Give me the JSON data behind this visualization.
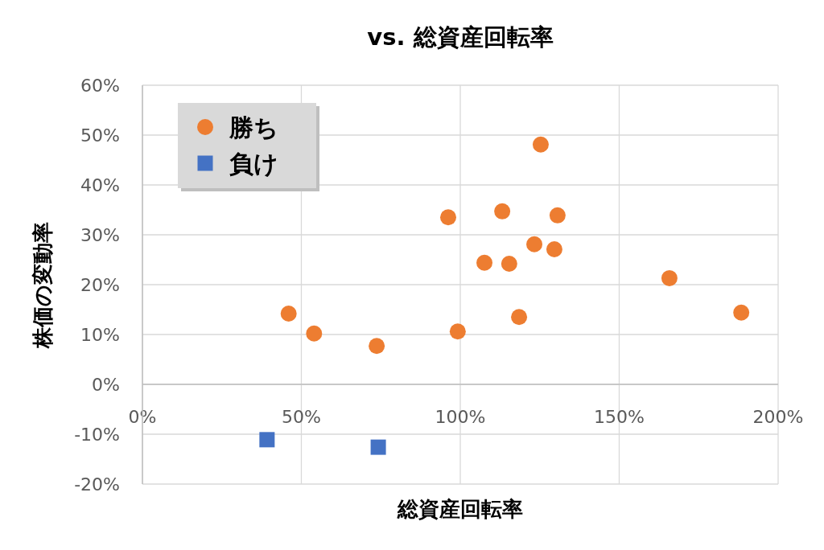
{
  "chart_data": {
    "type": "scatter",
    "title": "vs. 総資産回転率",
    "xlabel": "総資産回転率",
    "ylabel": "株価の変動率",
    "xlim": [
      0,
      200
    ],
    "xticks": [
      {
        "value": 0,
        "label": "0%"
      },
      {
        "value": 50,
        "label": "50%"
      },
      {
        "value": 100,
        "label": "100%"
      },
      {
        "value": 150,
        "label": "150%"
      },
      {
        "value": 200,
        "label": "200%"
      }
    ],
    "ylim": [
      -20,
      60
    ],
    "yticks": [
      {
        "value": -20,
        "label": "-20%"
      },
      {
        "value": -10,
        "label": "-10%"
      },
      {
        "value": 0,
        "label": "0%"
      },
      {
        "value": 10,
        "label": "10%"
      },
      {
        "value": 20,
        "label": "20%"
      },
      {
        "value": 30,
        "label": "30%"
      },
      {
        "value": 40,
        "label": "40%"
      },
      {
        "value": 50,
        "label": "50%"
      },
      {
        "value": 60,
        "label": "60%"
      }
    ],
    "grid": true,
    "legend": "top left",
    "series": [
      {
        "name": "勝ち",
        "color": "#ed7d31",
        "marker": "circle",
        "x": [
          46,
          54,
          73.7,
          96.2,
          99.2,
          107.6,
          113.2,
          115.4,
          118.5,
          123.3,
          125.3,
          129.6,
          130.6,
          165.8,
          188.4
        ],
        "values": [
          14.2,
          10.2,
          7.7,
          33.5,
          10.6,
          24.4,
          34.7,
          24.2,
          13.5,
          28.1,
          48.1,
          27.1,
          33.9,
          21.3,
          14.4
        ]
      },
      {
        "name": "負け",
        "color": "#4472c4",
        "marker": "square",
        "x": [
          39.2,
          74.2
        ],
        "values": [
          -11.1,
          -12.6
        ]
      }
    ]
  }
}
